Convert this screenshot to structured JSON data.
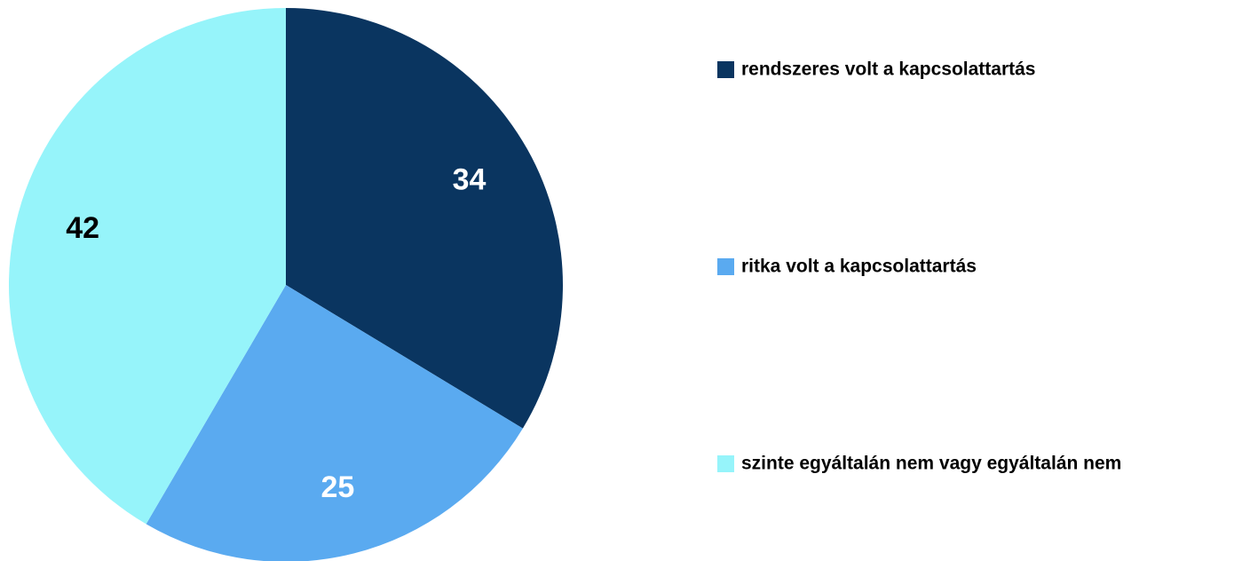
{
  "chart_data": {
    "type": "pie",
    "categories": [
      "rendszeres volt a kapcsolattartás",
      "ritka volt a kapcsolattartás",
      "szinte egyáltalán nem vagy egyáltalán nem"
    ],
    "values": [
      34,
      25,
      42
    ],
    "colors": [
      "#0a3560",
      "#5aaaf0",
      "#96f4fa"
    ],
    "label_colors": [
      "#ffffff",
      "#ffffff",
      "#000000"
    ],
    "legend": "right"
  }
}
